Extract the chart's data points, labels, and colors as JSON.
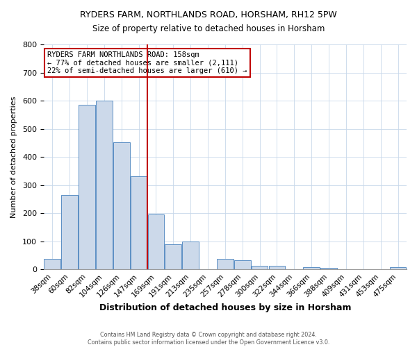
{
  "title": "RYDERS FARM, NORTHLANDS ROAD, HORSHAM, RH12 5PW",
  "subtitle": "Size of property relative to detached houses in Horsham",
  "xlabel": "Distribution of detached houses by size in Horsham",
  "ylabel": "Number of detached properties",
  "bar_labels": [
    "38sqm",
    "60sqm",
    "82sqm",
    "104sqm",
    "126sqm",
    "147sqm",
    "169sqm",
    "191sqm",
    "213sqm",
    "235sqm",
    "257sqm",
    "278sqm",
    "300sqm",
    "322sqm",
    "344sqm",
    "366sqm",
    "388sqm",
    "409sqm",
    "431sqm",
    "453sqm",
    "475sqm"
  ],
  "bar_values": [
    37,
    265,
    585,
    600,
    453,
    332,
    196,
    90,
    100,
    0,
    37,
    32,
    13,
    12,
    0,
    9,
    5,
    0,
    0,
    0,
    8
  ],
  "bar_color": "#ccd9ea",
  "bar_edge_color": "#5b8fc4",
  "vline_x": 6,
  "vline_color": "#c00000",
  "annotation_title": "RYDERS FARM NORTHLANDS ROAD: 158sqm",
  "annotation_line1": "← 77% of detached houses are smaller (2,111)",
  "annotation_line2": "22% of semi-detached houses are larger (610) →",
  "annotation_box_edge": "#c00000",
  "ylim": [
    0,
    800
  ],
  "yticks": [
    0,
    100,
    200,
    300,
    400,
    500,
    600,
    700,
    800
  ],
  "footer1": "Contains HM Land Registry data © Crown copyright and database right 2024.",
  "footer2": "Contains public sector information licensed under the Open Government Licence v3.0."
}
